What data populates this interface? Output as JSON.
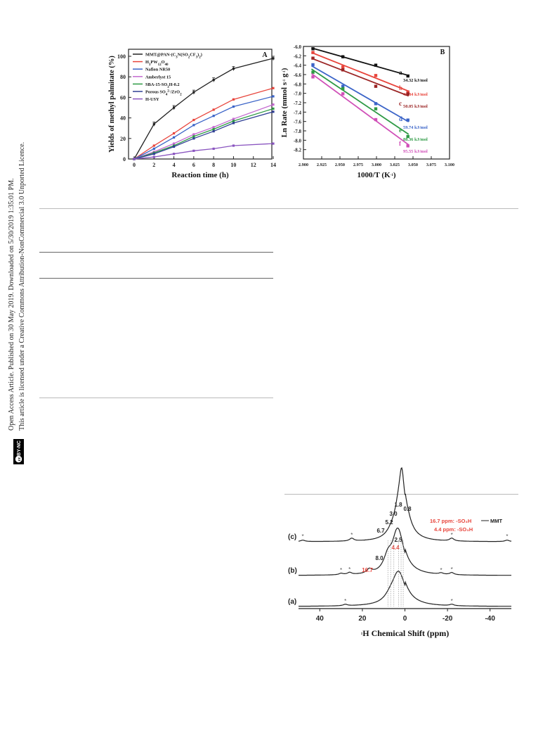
{
  "sidebar": {
    "line1": "Open Access Article. Published on 30 May 2019. Downloaded on 5/30/2019 1:35:01 PM.",
    "line2": "This article is licensed under a Creative Commons Attribution-NonCommercial 3.0 Unported Licence.",
    "badge_cc": "cc",
    "badge_text": "BY-NC"
  },
  "chart_data": [
    {
      "type": "line",
      "panel_label": "A",
      "xlabel": "Reaction time (h)",
      "ylabel": "Yields of methyl palmitate (%)",
      "xlim": [
        0,
        14
      ],
      "ylim": [
        0,
        100
      ],
      "xticks": [
        0,
        2,
        4,
        6,
        8,
        10,
        12,
        14
      ],
      "yticks": [
        0,
        20,
        40,
        60,
        80,
        100
      ],
      "legend_position": "top-left",
      "series": [
        {
          "name": "MMT@PAN-(C3N(SO2CF3)2)",
          "color": "#222222",
          "x": [
            0,
            2,
            4,
            6,
            8,
            10,
            14
          ],
          "y": [
            0,
            34,
            50,
            65,
            77,
            88,
            98
          ]
        },
        {
          "name": "H3PW12O40",
          "color": "#e8453c",
          "x": [
            0,
            2,
            4,
            6,
            8,
            10,
            14
          ],
          "y": [
            0,
            13,
            25,
            38,
            48,
            58,
            69
          ]
        },
        {
          "name": "Nafion NR50",
          "color": "#3b64c8",
          "x": [
            0,
            2,
            4,
            6,
            8,
            10,
            14
          ],
          "y": [
            0,
            10,
            21,
            33,
            42,
            51,
            61
          ]
        },
        {
          "name": "Amberlyst 15",
          "color": "#c46ad0",
          "x": [
            0,
            2,
            4,
            6,
            8,
            10,
            14
          ],
          "y": [
            0,
            7,
            15,
            24,
            31,
            39,
            53
          ]
        },
        {
          "name": "SBA-15-SO3H-0.2",
          "color": "#2e9a45",
          "x": [
            0,
            2,
            4,
            6,
            8,
            10,
            14
          ],
          "y": [
            0,
            6,
            13,
            22,
            29,
            37,
            49
          ]
        },
        {
          "name": "Porous SO4 2-/ZrO2",
          "color": "#2f3f94",
          "x": [
            0,
            2,
            4,
            6,
            8,
            10,
            14
          ],
          "y": [
            0,
            5,
            12,
            20,
            27,
            35,
            46
          ]
        },
        {
          "name": "H-USY",
          "color": "#8a55c0",
          "x": [
            0,
            2,
            4,
            6,
            8,
            10,
            14
          ],
          "y": [
            0,
            2,
            5,
            8,
            10,
            13,
            15
          ]
        }
      ]
    },
    {
      "type": "scatter",
      "panel_label": "B",
      "xlabel": "1000/T (K⁻¹)",
      "ylabel": "Ln Rate (mmol s⁻¹ g⁻¹)",
      "xlim": [
        2.9,
        3.1
      ],
      "ylim": [
        -8.4,
        -6.0
      ],
      "xticks": [
        "2.900",
        "2.925",
        "2.950",
        "2.975",
        "3.000",
        "3.025",
        "3.050",
        "3.075",
        "3.100"
      ],
      "yticks": [
        "-6.0",
        "-6.2",
        "-6.4",
        "-6.6",
        "-6.8",
        "-7.0",
        "-7.2",
        "-7.4",
        "-7.6",
        "-7.8",
        "-8.0",
        "-8.2"
      ],
      "series": [
        {
          "name": "a",
          "energy": "34.32 kJ/mol",
          "color": "#111111",
          "x": [
            2.913,
            2.954,
            2.999,
            3.043
          ],
          "y": [
            -6.05,
            -6.22,
            -6.4,
            -6.63
          ]
        },
        {
          "name": "b",
          "energy": "45.84 kJ/mol",
          "color": "#e8453c",
          "x": [
            2.913,
            2.954,
            2.999,
            3.043
          ],
          "y": [
            -6.13,
            -6.44,
            -6.62,
            -6.97
          ]
        },
        {
          "name": "c",
          "energy": "50.05 kJ/mol",
          "color": "#9b2525",
          "x": [
            2.913,
            2.954,
            2.999,
            3.043
          ],
          "y": [
            -6.25,
            -6.5,
            -6.85,
            -7.01
          ]
        },
        {
          "name": "d",
          "energy": "59.74 kJ/mol",
          "color": "#3b64c8",
          "x": [
            2.913,
            2.954,
            2.999,
            3.043
          ],
          "y": [
            -6.39,
            -6.85,
            -7.22,
            -7.57
          ]
        },
        {
          "name": "e",
          "energy": "88.36 kJ/mol",
          "color": "#2e9a45",
          "x": [
            2.913,
            2.954,
            2.999,
            3.043
          ],
          "y": [
            -6.55,
            -6.9,
            -7.33,
            -7.92
          ]
        },
        {
          "name": "f",
          "energy": "95.55 kJ/mol",
          "color": "#d050b8",
          "x": [
            2.913,
            2.954,
            2.999,
            3.043
          ],
          "y": [
            -6.65,
            -7.01,
            -7.56,
            -8.12
          ]
        }
      ]
    },
    {
      "type": "line",
      "panel_label": "",
      "xlabel": "¹H Chemical Shift (ppm)",
      "ylabel": "",
      "xlim": [
        50,
        -50
      ],
      "xticks": [
        40,
        20,
        0,
        -20,
        -40
      ],
      "traces": [
        {
          "name": "(c)",
          "shape": "c",
          "peaks": [
            {
              "label": "6.7",
              "ppm": 6.7,
              "color": "#222222"
            },
            {
              "label": "5.2",
              "ppm": 5.2,
              "color": "#222222"
            },
            {
              "label": "3.0",
              "ppm": 3.0,
              "color": "#222222"
            },
            {
              "label": "1.8",
              "ppm": 1.8,
              "color": "#222222"
            },
            {
              "label": "0.8",
              "ppm": 0.8,
              "color": "#222222"
            }
          ]
        },
        {
          "name": "(b)",
          "shape": "b",
          "peaks": [
            {
              "label": "16.7",
              "ppm": 16.7,
              "color": "#e8453c"
            },
            {
              "label": "8.0",
              "ppm": 8.0,
              "color": "#222222"
            },
            {
              "label": "4.4",
              "ppm": 4.4,
              "color": "#e8453c"
            },
            {
              "label": "2.5",
              "ppm": 2.5,
              "color": "#222222"
            }
          ]
        },
        {
          "name": "(a)",
          "shape": "a",
          "peaks": []
        }
      ],
      "annotations": [
        {
          "text": "16.7 ppm: -SO₃H",
          "link": "MMT",
          "color": "#e8453c"
        },
        {
          "text": "4.4 ppm: -SO₃H",
          "color": "#e8453c"
        }
      ]
    }
  ]
}
